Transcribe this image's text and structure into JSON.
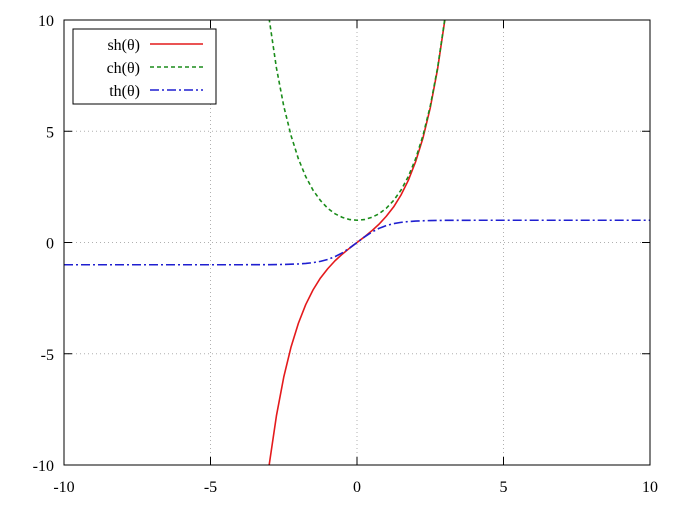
{
  "chart_data": {
    "type": "line",
    "title": "",
    "xlabel": "",
    "ylabel": "",
    "xlim": [
      -10,
      10
    ],
    "ylim": [
      -10,
      10
    ],
    "grid": true,
    "legend_position": "top-left",
    "x_ticks": [
      -10,
      -5,
      0,
      5,
      10
    ],
    "y_ticks": [
      -10,
      -5,
      0,
      5,
      10
    ],
    "x_tick_labels": [
      "-10",
      "-5",
      "0",
      "5",
      "10"
    ],
    "y_tick_labels": [
      "-10",
      "-5",
      "0",
      "5",
      "10"
    ],
    "series": [
      {
        "name": "sh(θ)",
        "color": "#e41a1c",
        "dash": "solid",
        "x": [
          -3.0,
          -2.75,
          -2.5,
          -2.25,
          -2.0,
          -1.75,
          -1.5,
          -1.25,
          -1.0,
          -0.75,
          -0.5,
          -0.25,
          0.0,
          0.25,
          0.5,
          0.75,
          1.0,
          1.25,
          1.5,
          1.75,
          2.0,
          2.25,
          2.5,
          2.75,
          3.0
        ],
        "y": [
          -10.02,
          -7.79,
          -6.05,
          -4.69,
          -3.63,
          -2.79,
          -2.13,
          -1.6,
          -1.18,
          -0.82,
          -0.52,
          -0.25,
          0.0,
          0.25,
          0.52,
          0.82,
          1.18,
          1.6,
          2.13,
          2.79,
          3.63,
          4.69,
          6.05,
          7.79,
          10.02
        ]
      },
      {
        "name": "ch(θ)",
        "color": "#1a8c1a",
        "dash": "dotted",
        "x": [
          -3.0,
          -2.75,
          -2.5,
          -2.25,
          -2.0,
          -1.75,
          -1.5,
          -1.25,
          -1.0,
          -0.75,
          -0.5,
          -0.25,
          0.0,
          0.25,
          0.5,
          0.75,
          1.0,
          1.25,
          1.5,
          1.75,
          2.0,
          2.25,
          2.5,
          2.75,
          3.0
        ],
        "y": [
          10.07,
          7.85,
          6.13,
          4.8,
          3.76,
          2.96,
          2.35,
          1.89,
          1.54,
          1.29,
          1.13,
          1.03,
          1.0,
          1.03,
          1.13,
          1.29,
          1.54,
          1.89,
          2.35,
          2.96,
          3.76,
          4.8,
          6.13,
          7.85,
          10.07
        ]
      },
      {
        "name": "th(θ)",
        "color": "#1f1fd0",
        "dash": "dashdot",
        "x": [
          -10,
          -5,
          -4,
          -3,
          -2.5,
          -2,
          -1.75,
          -1.5,
          -1.25,
          -1,
          -0.75,
          -0.5,
          -0.25,
          0,
          0.25,
          0.5,
          0.75,
          1,
          1.25,
          1.5,
          1.75,
          2,
          2.5,
          3,
          4,
          5,
          10
        ],
        "y": [
          -1.0,
          -1.0,
          -1.0,
          -0.995,
          -0.987,
          -0.964,
          -0.941,
          -0.905,
          -0.848,
          -0.762,
          -0.635,
          -0.462,
          -0.245,
          0.0,
          0.245,
          0.462,
          0.635,
          0.762,
          0.848,
          0.905,
          0.941,
          0.964,
          0.987,
          0.995,
          1.0,
          1.0,
          1.0
        ]
      }
    ]
  }
}
